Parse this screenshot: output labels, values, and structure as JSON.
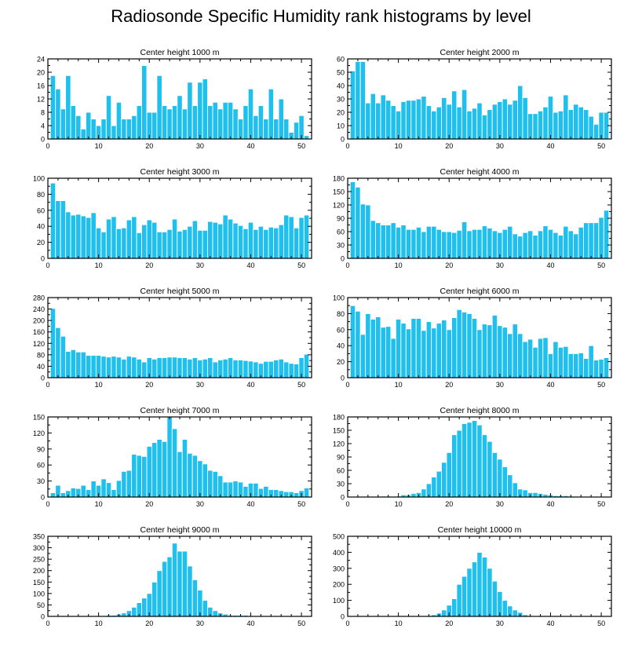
{
  "figure_title": "Radiosonde Specific Humidity rank histograms by level",
  "colors": {
    "bar": "#1fbfee",
    "bar_edge": "#ffffff",
    "axis": "#000000"
  },
  "chart_data": [
    {
      "type": "bar",
      "title": "Center height 1000 m",
      "xlabel": "",
      "ylabel": "",
      "x_ticks": [
        0,
        10,
        20,
        30,
        40,
        50
      ],
      "y_ticks": [
        0,
        4,
        8,
        12,
        16,
        20,
        24
      ],
      "xlim": [
        0,
        52
      ],
      "ylim": [
        0,
        24
      ],
      "categories": [
        1,
        2,
        3,
        4,
        5,
        6,
        7,
        8,
        9,
        10,
        11,
        12,
        13,
        14,
        15,
        16,
        17,
        18,
        19,
        20,
        21,
        22,
        23,
        24,
        25,
        26,
        27,
        28,
        29,
        30,
        31,
        32,
        33,
        34,
        35,
        36,
        37,
        38,
        39,
        40,
        41,
        42,
        43,
        44,
        45,
        46,
        47,
        48,
        49,
        50,
        51
      ],
      "values": [
        19,
        15,
        9,
        19,
        10,
        7,
        3,
        8,
        6,
        4,
        6,
        13,
        4,
        11,
        6,
        6,
        7,
        10,
        22,
        8,
        8,
        19,
        10,
        9,
        10,
        13,
        9,
        17,
        10,
        17,
        18,
        10,
        11,
        9,
        11,
        11,
        9,
        6,
        10,
        15,
        7,
        10,
        6,
        15,
        6,
        12,
        6,
        2,
        5,
        7,
        1
      ]
    },
    {
      "type": "bar",
      "title": "Center height 2000 m",
      "xlabel": "",
      "ylabel": "",
      "x_ticks": [
        0,
        10,
        20,
        30,
        40,
        50
      ],
      "y_ticks": [
        0,
        10,
        20,
        30,
        40,
        50,
        60
      ],
      "xlim": [
        0,
        52
      ],
      "ylim": [
        0,
        60
      ],
      "categories": [
        1,
        2,
        3,
        4,
        5,
        6,
        7,
        8,
        9,
        10,
        11,
        12,
        13,
        14,
        15,
        16,
        17,
        18,
        19,
        20,
        21,
        22,
        23,
        24,
        25,
        26,
        27,
        28,
        29,
        30,
        31,
        32,
        33,
        34,
        35,
        36,
        37,
        38,
        39,
        40,
        41,
        42,
        43,
        44,
        45,
        46,
        47,
        48,
        49,
        50,
        51
      ],
      "values": [
        51,
        58,
        58,
        27,
        34,
        27,
        33,
        29,
        25,
        21,
        28,
        29,
        29,
        30,
        32,
        25,
        21,
        24,
        31,
        26,
        36,
        24,
        37,
        21,
        23,
        27,
        18,
        22,
        26,
        28,
        30,
        26,
        29,
        40,
        31,
        19,
        19,
        21,
        24,
        32,
        20,
        21,
        33,
        22,
        26,
        24,
        22,
        17,
        11,
        20,
        20
      ]
    },
    {
      "type": "bar",
      "title": "Center height 3000 m",
      "xlabel": "",
      "ylabel": "",
      "x_ticks": [
        0,
        10,
        20,
        30,
        40,
        50
      ],
      "y_ticks": [
        0,
        20,
        40,
        60,
        80,
        100
      ],
      "xlim": [
        0,
        52
      ],
      "ylim": [
        0,
        100
      ],
      "categories": [
        1,
        2,
        3,
        4,
        5,
        6,
        7,
        8,
        9,
        10,
        11,
        12,
        13,
        14,
        15,
        16,
        17,
        18,
        19,
        20,
        21,
        22,
        23,
        24,
        25,
        26,
        27,
        28,
        29,
        30,
        31,
        32,
        33,
        34,
        35,
        36,
        37,
        38,
        39,
        40,
        41,
        42,
        43,
        44,
        45,
        46,
        47,
        48,
        49,
        50,
        51
      ],
      "values": [
        94,
        72,
        72,
        58,
        54,
        55,
        53,
        51,
        57,
        38,
        33,
        49,
        52,
        37,
        38,
        48,
        52,
        32,
        42,
        48,
        45,
        33,
        33,
        36,
        49,
        34,
        36,
        40,
        47,
        35,
        35,
        46,
        45,
        43,
        54,
        49,
        44,
        41,
        37,
        45,
        36,
        40,
        36,
        39,
        38,
        42,
        54,
        52,
        38,
        51,
        54
      ]
    },
    {
      "type": "bar",
      "title": "Center height 4000 m",
      "xlabel": "",
      "ylabel": "",
      "x_ticks": [
        0,
        10,
        20,
        30,
        40,
        50
      ],
      "y_ticks": [
        0,
        30,
        60,
        90,
        120,
        150,
        180
      ],
      "xlim": [
        0,
        52
      ],
      "ylim": [
        0,
        180
      ],
      "categories": [
        1,
        2,
        3,
        4,
        5,
        6,
        7,
        8,
        9,
        10,
        11,
        12,
        13,
        14,
        15,
        16,
        17,
        18,
        19,
        20,
        21,
        22,
        23,
        24,
        25,
        26,
        27,
        28,
        29,
        30,
        31,
        32,
        33,
        34,
        35,
        36,
        37,
        38,
        39,
        40,
        41,
        42,
        43,
        44,
        45,
        46,
        47,
        48,
        49,
        50,
        51
      ],
      "values": [
        172,
        160,
        122,
        120,
        85,
        80,
        75,
        75,
        80,
        70,
        75,
        65,
        65,
        70,
        60,
        72,
        72,
        65,
        60,
        60,
        58,
        63,
        82,
        62,
        65,
        65,
        73,
        68,
        62,
        58,
        65,
        72,
        55,
        50,
        58,
        62,
        52,
        62,
        73,
        65,
        58,
        52,
        72,
        62,
        55,
        70,
        80,
        80,
        80,
        92,
        108
      ]
    },
    {
      "type": "bar",
      "title": "Center height 5000 m",
      "xlabel": "",
      "ylabel": "",
      "x_ticks": [
        0,
        10,
        20,
        30,
        40,
        50
      ],
      "y_ticks": [
        0,
        40,
        80,
        120,
        160,
        200,
        240,
        280
      ],
      "xlim": [
        0,
        52
      ],
      "ylim": [
        0,
        280
      ],
      "categories": [
        1,
        2,
        3,
        4,
        5,
        6,
        7,
        8,
        9,
        10,
        11,
        12,
        13,
        14,
        15,
        16,
        17,
        18,
        19,
        20,
        21,
        22,
        23,
        24,
        25,
        26,
        27,
        28,
        29,
        30,
        31,
        32,
        33,
        34,
        35,
        36,
        37,
        38,
        39,
        40,
        41,
        42,
        43,
        44,
        45,
        46,
        47,
        48,
        49,
        50,
        51
      ],
      "values": [
        242,
        175,
        145,
        92,
        98,
        90,
        90,
        78,
        78,
        78,
        75,
        72,
        75,
        72,
        65,
        75,
        72,
        65,
        55,
        70,
        65,
        70,
        70,
        72,
        72,
        70,
        70,
        65,
        70,
        62,
        65,
        70,
        55,
        62,
        65,
        70,
        62,
        62,
        60,
        58,
        55,
        50,
        57,
        57,
        62,
        65,
        55,
        50,
        48,
        70,
        82
      ]
    },
    {
      "type": "bar",
      "title": "Center height 6000 m",
      "xlabel": "",
      "ylabel": "",
      "x_ticks": [
        0,
        10,
        20,
        30,
        40,
        50
      ],
      "y_ticks": [
        0,
        20,
        40,
        60,
        80,
        100
      ],
      "xlim": [
        0,
        52
      ],
      "ylim": [
        0,
        100
      ],
      "categories": [
        1,
        2,
        3,
        4,
        5,
        6,
        7,
        8,
        9,
        10,
        11,
        12,
        13,
        14,
        15,
        16,
        17,
        18,
        19,
        20,
        21,
        22,
        23,
        24,
        25,
        26,
        27,
        28,
        29,
        30,
        31,
        32,
        33,
        34,
        35,
        36,
        37,
        38,
        39,
        40,
        41,
        42,
        43,
        44,
        45,
        46,
        47,
        48,
        49,
        50,
        51
      ],
      "values": [
        90,
        83,
        54,
        80,
        73,
        76,
        63,
        64,
        49,
        73,
        68,
        61,
        74,
        74,
        59,
        70,
        62,
        68,
        72,
        60,
        75,
        85,
        82,
        80,
        74,
        60,
        67,
        66,
        78,
        65,
        63,
        55,
        67,
        55,
        45,
        48,
        38,
        49,
        50,
        30,
        45,
        38,
        39,
        30,
        30,
        31,
        24,
        40,
        22,
        23,
        25
      ]
    },
    {
      "type": "bar",
      "title": "Center height 7000 m",
      "xlabel": "",
      "ylabel": "",
      "x_ticks": [
        0,
        10,
        20,
        30,
        40,
        50
      ],
      "y_ticks": [
        0,
        30,
        60,
        90,
        120,
        150
      ],
      "xlim": [
        0,
        52
      ],
      "ylim": [
        0,
        150
      ],
      "categories": [
        1,
        2,
        3,
        4,
        5,
        6,
        7,
        8,
        9,
        10,
        11,
        12,
        13,
        14,
        15,
        16,
        17,
        18,
        19,
        20,
        21,
        22,
        23,
        24,
        25,
        26,
        27,
        28,
        29,
        30,
        31,
        32,
        33,
        34,
        35,
        36,
        37,
        38,
        39,
        40,
        41,
        42,
        43,
        44,
        45,
        46,
        47,
        48,
        49,
        50,
        51
      ],
      "values": [
        8,
        22,
        8,
        12,
        17,
        16,
        22,
        14,
        30,
        22,
        34,
        27,
        14,
        31,
        48,
        50,
        80,
        78,
        76,
        95,
        102,
        108,
        104,
        150,
        128,
        85,
        108,
        82,
        78,
        68,
        62,
        50,
        48,
        40,
        28,
        28,
        30,
        28,
        20,
        26,
        26,
        16,
        20,
        14,
        14,
        12,
        10,
        10,
        8,
        12,
        17
      ]
    },
    {
      "type": "bar",
      "title": "Center height 8000 m",
      "xlabel": "",
      "ylabel": "",
      "x_ticks": [
        0,
        10,
        20,
        30,
        40,
        50
      ],
      "y_ticks": [
        0,
        30,
        60,
        90,
        120,
        150,
        180
      ],
      "xlim": [
        0,
        52
      ],
      "ylim": [
        0,
        180
      ],
      "categories": [
        1,
        2,
        3,
        4,
        5,
        6,
        7,
        8,
        9,
        10,
        11,
        12,
        13,
        14,
        15,
        16,
        17,
        18,
        19,
        20,
        21,
        22,
        23,
        24,
        25,
        26,
        27,
        28,
        29,
        30,
        31,
        32,
        33,
        34,
        35,
        36,
        37,
        38,
        39,
        40,
        41,
        42,
        43,
        44,
        45,
        46,
        47,
        48,
        49,
        50,
        51
      ],
      "values": [
        0,
        0,
        0,
        0,
        0,
        0,
        2,
        2,
        0,
        2,
        5,
        5,
        8,
        10,
        18,
        30,
        45,
        58,
        78,
        100,
        140,
        150,
        165,
        168,
        172,
        162,
        140,
        125,
        100,
        85,
        68,
        50,
        32,
        18,
        16,
        10,
        10,
        8,
        6,
        5,
        3,
        3,
        3,
        2,
        0,
        0,
        0,
        0,
        0,
        0,
        0
      ]
    },
    {
      "type": "bar",
      "title": "Center height 9000 m",
      "xlabel": "",
      "ylabel": "",
      "x_ticks": [
        0,
        10,
        20,
        30,
        40,
        50
      ],
      "y_ticks": [
        0,
        50,
        100,
        150,
        200,
        250,
        300,
        350
      ],
      "xlim": [
        0,
        52
      ],
      "ylim": [
        0,
        350
      ],
      "categories": [
        1,
        2,
        3,
        4,
        5,
        6,
        7,
        8,
        9,
        10,
        11,
        12,
        13,
        14,
        15,
        16,
        17,
        18,
        19,
        20,
        21,
        22,
        23,
        24,
        25,
        26,
        27,
        28,
        29,
        30,
        31,
        32,
        33,
        34,
        35,
        36,
        37,
        38,
        39,
        40,
        41,
        42,
        43,
        44,
        45,
        46,
        47,
        48,
        49,
        50,
        51
      ],
      "values": [
        0,
        0,
        0,
        0,
        0,
        0,
        0,
        0,
        0,
        2,
        2,
        5,
        5,
        10,
        15,
        25,
        40,
        60,
        80,
        100,
        150,
        200,
        240,
        260,
        320,
        285,
        285,
        220,
        160,
        115,
        70,
        40,
        25,
        15,
        10,
        5,
        5,
        5,
        5,
        3,
        3,
        0,
        0,
        0,
        0,
        0,
        0,
        0,
        0,
        0,
        0
      ]
    },
    {
      "type": "bar",
      "title": "Center height 10000 m",
      "xlabel": "",
      "ylabel": "",
      "x_ticks": [
        0,
        10,
        20,
        30,
        40,
        50
      ],
      "y_ticks": [
        0,
        100,
        200,
        300,
        400,
        500
      ],
      "xlim": [
        0,
        52
      ],
      "ylim": [
        0,
        500
      ],
      "categories": [
        1,
        2,
        3,
        4,
        5,
        6,
        7,
        8,
        9,
        10,
        11,
        12,
        13,
        14,
        15,
        16,
        17,
        18,
        19,
        20,
        21,
        22,
        23,
        24,
        25,
        26,
        27,
        28,
        29,
        30,
        31,
        32,
        33,
        34,
        35,
        36,
        37,
        38,
        39,
        40,
        41,
        42,
        43,
        44,
        45,
        46,
        47,
        48,
        49,
        50,
        51
      ],
      "values": [
        0,
        0,
        0,
        0,
        0,
        0,
        0,
        0,
        0,
        0,
        0,
        0,
        0,
        0,
        2,
        5,
        10,
        20,
        40,
        70,
        110,
        200,
        250,
        300,
        340,
        400,
        370,
        300,
        220,
        155,
        100,
        65,
        40,
        25,
        10,
        5,
        3,
        3,
        0,
        0,
        0,
        0,
        0,
        0,
        0,
        0,
        0,
        0,
        0,
        0,
        0
      ]
    }
  ]
}
